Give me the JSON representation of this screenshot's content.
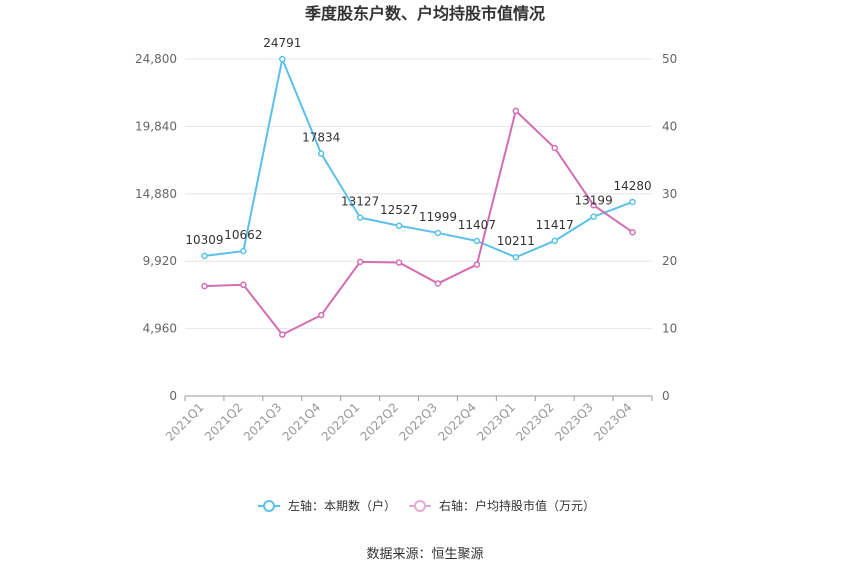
{
  "chart_data": {
    "type": "line",
    "title": "季度股东户数、户均持股市值情况",
    "categories": [
      "2021Q1",
      "2021Q2",
      "2021Q3",
      "2021Q4",
      "2022Q1",
      "2022Q2",
      "2022Q3",
      "2022Q4",
      "2023Q1",
      "2023Q2",
      "2023Q3",
      "2023Q4"
    ],
    "left_axis": {
      "ticks": [
        "0",
        "4,960",
        "9,920",
        "14,880",
        "19,840",
        "24,800"
      ],
      "ylim": [
        0,
        24800
      ]
    },
    "right_axis": {
      "ticks": [
        "0",
        "10",
        "20",
        "30",
        "40",
        "50"
      ],
      "ylim": [
        0,
        50
      ]
    },
    "series": [
      {
        "name": "左轴：本期数（户）",
        "axis": "left",
        "color": "#5bc0eb",
        "values": [
          10309,
          10662,
          24791,
          17834,
          13127,
          12527,
          11999,
          11407,
          10211,
          11417,
          13199,
          14280
        ],
        "labels": [
          "10309",
          "10662",
          "24791",
          "17834",
          "13127",
          "12527",
          "11999",
          "11407",
          "10211",
          "11417",
          "13199",
          "14280"
        ]
      },
      {
        "name": "右轴：户均持股市值（万元）",
        "axis": "right",
        "color": "#d36eb4",
        "values": [
          16.3,
          16.5,
          9.1,
          12.0,
          19.9,
          19.8,
          16.7,
          19.5,
          42.3,
          36.8,
          28.3,
          24.3
        ]
      }
    ],
    "grid": true,
    "legend_position": "bottom"
  },
  "source": "数据来源：恒生聚源"
}
